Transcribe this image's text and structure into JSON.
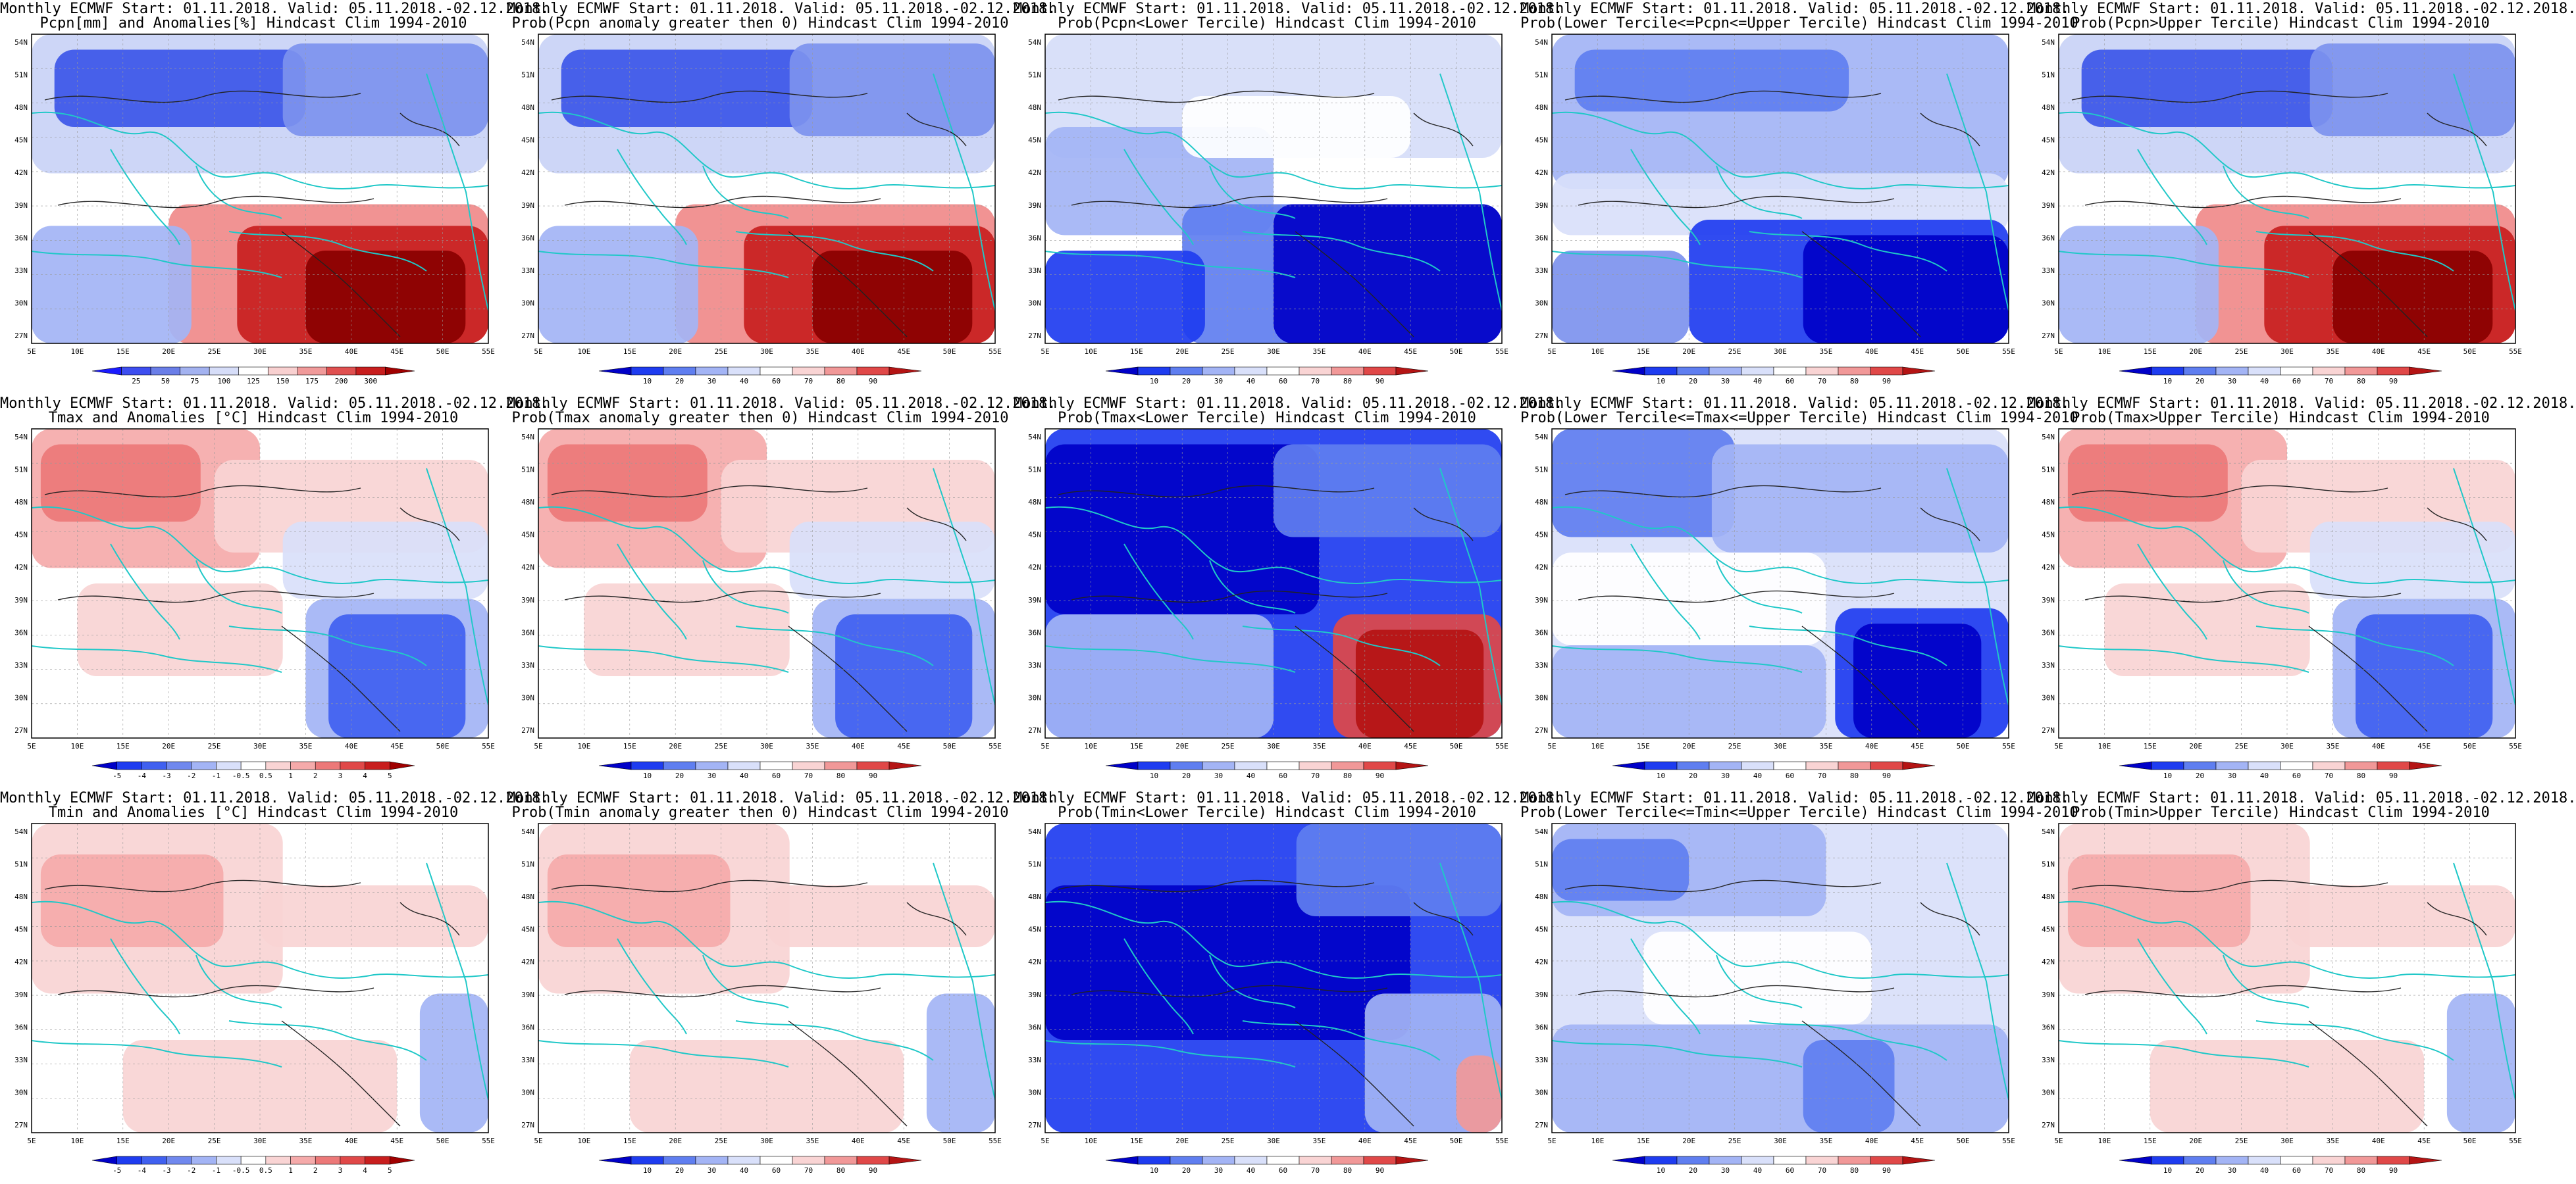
{
  "panels": [
    {
      "row": 0,
      "col": 0,
      "title1": "Monthly ECMWF Start: 01.11.2018. Valid: 05.11.2018.-02.12.2018.",
      "title2": "Pcpn[mm] and Anomalies[%] Hindcast Clim 1994-2010",
      "scale": "pcpn",
      "pattern": "a"
    },
    {
      "row": 0,
      "col": 1,
      "title1": "Monthly ECMWF Start: 01.11.2018. Valid: 05.11.2018.-02.12.2018.",
      "title2": "Prob(Pcpn anomaly greater then 0) Hindcast Clim 1994-2010",
      "scale": "prob",
      "pattern": "a"
    },
    {
      "row": 0,
      "col": 2,
      "title1": "Monthly ECMWF Start: 01.11.2018. Valid: 05.11.2018.-02.12.2018.",
      "title2": "Prob(Pcpn<Lower Tercile) Hindcast Clim 1994-2010",
      "scale": "prob",
      "pattern": "b"
    },
    {
      "row": 0,
      "col": 3,
      "title1": "Monthly ECMWF Start: 01.11.2018. Valid: 05.11.2018.-02.12.2018.",
      "title2": "Prob(Lower Tercile<=Pcpn<=Upper Tercile) Hindcast Clim 1994-2010",
      "scale": "prob",
      "pattern": "c"
    },
    {
      "row": 0,
      "col": 4,
      "title1": "Monthly ECMWF Start: 01.11.2018. Valid: 05.11.2018.-02.12.2018.",
      "title2": "Prob(Pcpn>Upper Tercile) Hindcast Clim 1994-2010",
      "scale": "prob",
      "pattern": "a"
    },
    {
      "row": 1,
      "col": 0,
      "title1": "Monthly ECMWF Start: 01.11.2018. Valid: 05.11.2018.-02.12.2018.",
      "title2": "Tmax and Anomalies [°C] Hindcast Clim 1994-2010",
      "scale": "temp",
      "pattern": "d"
    },
    {
      "row": 1,
      "col": 1,
      "title1": "Monthly ECMWF Start: 01.11.2018. Valid: 05.11.2018.-02.12.2018.",
      "title2": "Prob(Tmax anomaly greater then 0) Hindcast Clim 1994-2010",
      "scale": "prob",
      "pattern": "d"
    },
    {
      "row": 1,
      "col": 2,
      "title1": "Monthly ECMWF Start: 01.11.2018. Valid: 05.11.2018.-02.12.2018.",
      "title2": "Prob(Tmax<Lower Tercile) Hindcast Clim 1994-2010",
      "scale": "prob",
      "pattern": "e"
    },
    {
      "row": 1,
      "col": 3,
      "title1": "Monthly ECMWF Start: 01.11.2018. Valid: 05.11.2018.-02.12.2018.",
      "title2": "Prob(Lower Tercile<=Tmax<=Upper Tercile) Hindcast Clim 1994-2010",
      "scale": "prob",
      "pattern": "f"
    },
    {
      "row": 1,
      "col": 4,
      "title1": "Monthly ECMWF Start: 01.11.2018. Valid: 05.11.2018.-02.12.2018.",
      "title2": "Prob(Tmax>Upper Tercile) Hindcast Clim 1994-2010",
      "scale": "prob",
      "pattern": "d"
    },
    {
      "row": 2,
      "col": 0,
      "title1": "Monthly ECMWF Start: 01.11.2018. Valid: 05.11.2018.-02.12.2018.",
      "title2": "Tmin and Anomalies [°C] Hindcast Clim 1994-2010",
      "scale": "temp",
      "pattern": "g"
    },
    {
      "row": 2,
      "col": 1,
      "title1": "Monthly ECMWF Start: 01.11.2018. Valid: 05.11.2018.-02.12.2018.",
      "title2": "Prob(Tmin anomaly greater then 0) Hindcast Clim 1994-2010",
      "scale": "prob",
      "pattern": "g"
    },
    {
      "row": 2,
      "col": 2,
      "title1": "Monthly ECMWF Start: 01.11.2018. Valid: 05.11.2018.-02.12.2018.",
      "title2": "Prob(Tmin<Lower Tercile) Hindcast Clim 1994-2010",
      "scale": "prob",
      "pattern": "h"
    },
    {
      "row": 2,
      "col": 3,
      "title1": "Monthly ECMWF Start: 01.11.2018. Valid: 05.11.2018.-02.12.2018.",
      "title2": "Prob(Lower Tercile<=Tmin<=Upper Tercile) Hindcast Clim 1994-2010",
      "scale": "prob",
      "pattern": "i"
    },
    {
      "row": 2,
      "col": 4,
      "title1": "Monthly ECMWF Start: 01.11.2018. Valid: 05.11.2018.-02.12.2018.",
      "title2": "Prob(Tmin>Upper Tercile) Hindcast Clim 1994-2010",
      "scale": "prob",
      "pattern": "g"
    }
  ],
  "lat_labels": [
    "54N",
    "51N",
    "48N",
    "45N",
    "42N",
    "39N",
    "36N",
    "33N",
    "30N",
    "27N"
  ],
  "lon_labels": [
    "5E",
    "10E",
    "15E",
    "20E",
    "25E",
    "30E",
    "35E",
    "40E",
    "45E",
    "50E",
    "55E"
  ],
  "scales": {
    "pcpn": {
      "labels": [
        "25",
        "50",
        "75",
        "100",
        "125",
        "150",
        "175",
        "200",
        "300"
      ],
      "colors": [
        "#1a1aff",
        "#3d4ef0",
        "#6a7ee8",
        "#a3b2f0",
        "#d6ddf8",
        "#ffffff",
        "#f8d0d0",
        "#f09a9a",
        "#e05050",
        "#c81e1e",
        "#a00000"
      ]
    },
    "prob": {
      "labels": [
        "10",
        "20",
        "30",
        "40",
        "60",
        "70",
        "80",
        "90"
      ],
      "colors": [
        "#0000c8",
        "#1e3cf0",
        "#5f7ef0",
        "#a3b4f5",
        "#d9e0fa",
        "#ffffff",
        "#f9d4d4",
        "#f19898",
        "#e04848",
        "#b41414"
      ]
    },
    "temp": {
      "labels": [
        "-5",
        "-4",
        "-3",
        "-2",
        "-1",
        "-0.5",
        "0.5",
        "1",
        "2",
        "3",
        "4",
        "5"
      ],
      "colors": [
        "#0000c8",
        "#1e3cf0",
        "#4060f0",
        "#7088ee",
        "#a3b4f5",
        "#d9e0fa",
        "#ffffff",
        "#f9d4d4",
        "#f5aaaa",
        "#ec7878",
        "#e04848",
        "#c81e1e",
        "#a00000"
      ]
    }
  },
  "patterns": {
    "a": [
      [
        "#c9d2f6",
        0,
        0,
        1,
        0.45
      ],
      [
        "#3c56e8",
        0.05,
        0.05,
        0.55,
        0.25
      ],
      [
        "#7d92ee",
        0.55,
        0.03,
        0.45,
        0.3
      ],
      [
        "#ffffff",
        0,
        0.45,
        1,
        0.2
      ],
      [
        "#f08a8a",
        0.3,
        0.55,
        0.7,
        0.45
      ],
      [
        "#c81e1e",
        0.45,
        0.62,
        0.55,
        0.38
      ],
      [
        "#8a0000",
        0.6,
        0.7,
        0.35,
        0.3
      ],
      [
        "#a3b4f5",
        0,
        0.62,
        0.35,
        0.38
      ]
    ],
    "b": [
      [
        "#d6ddf8",
        0,
        0,
        1,
        0.4
      ],
      [
        "#a3b4f5",
        0,
        0.3,
        0.5,
        0.35
      ],
      [
        "#ffffff",
        0.3,
        0.2,
        0.5,
        0.2
      ],
      [
        "#5f7ef0",
        0.3,
        0.55,
        0.7,
        0.45
      ],
      [
        "#0000c8",
        0.5,
        0.55,
        0.5,
        0.45
      ],
      [
        "#1e3cf0",
        0,
        0.7,
        0.35,
        0.3
      ]
    ],
    "c": [
      [
        "#a3b4f5",
        0,
        0,
        1,
        0.5
      ],
      [
        "#5f7ef0",
        0.05,
        0.05,
        0.6,
        0.2
      ],
      [
        "#d9e0fa",
        0,
        0.45,
        1,
        0.2
      ],
      [
        "#1e3cf0",
        0.3,
        0.6,
        0.7,
        0.4
      ],
      [
        "#0000c8",
        0.55,
        0.65,
        0.45,
        0.35
      ],
      [
        "#7d92ee",
        0,
        0.7,
        0.3,
        0.3
      ]
    ],
    "d": [
      [
        "#ffffff",
        0,
        0,
        1,
        1
      ],
      [
        "#f5aaaa",
        0,
        0,
        0.5,
        0.45
      ],
      [
        "#ec7878",
        0.02,
        0.05,
        0.35,
        0.25
      ],
      [
        "#f9d4d4",
        0.4,
        0.1,
        0.6,
        0.3
      ],
      [
        "#d9e0fa",
        0.55,
        0.3,
        0.45,
        0.25
      ],
      [
        "#a3b4f5",
        0.6,
        0.55,
        0.4,
        0.45
      ],
      [
        "#4060f0",
        0.65,
        0.6,
        0.3,
        0.4
      ],
      [
        "#f9d4d4",
        0.1,
        0.5,
        0.45,
        0.3
      ]
    ],
    "e": [
      [
        "#1e3cf0",
        0,
        0,
        1,
        1
      ],
      [
        "#0000c8",
        0,
        0.05,
        0.6,
        0.55
      ],
      [
        "#5f7ef0",
        0.5,
        0.05,
        0.5,
        0.3
      ],
      [
        "#a3b4f5",
        0,
        0.6,
        0.5,
        0.4
      ],
      [
        "#e04848",
        0.63,
        0.6,
        0.37,
        0.4
      ],
      [
        "#b41414",
        0.68,
        0.65,
        0.28,
        0.35
      ]
    ],
    "f": [
      [
        "#d9e0fa",
        0,
        0,
        1,
        1
      ],
      [
        "#5f7ef0",
        0,
        0,
        0.4,
        0.35
      ],
      [
        "#a3b4f5",
        0.35,
        0.05,
        0.65,
        0.35
      ],
      [
        "#ffffff",
        0,
        0.4,
        0.6,
        0.3
      ],
      [
        "#a3b4f5",
        0,
        0.7,
        0.6,
        0.3
      ],
      [
        "#1e3cf0",
        0.62,
        0.58,
        0.38,
        0.42
      ],
      [
        "#0000c8",
        0.66,
        0.63,
        0.28,
        0.37
      ]
    ],
    "g": [
      [
        "#ffffff",
        0,
        0,
        1,
        1
      ],
      [
        "#f9d4d4",
        0,
        0,
        0.55,
        0.55
      ],
      [
        "#f5aaaa",
        0.02,
        0.1,
        0.4,
        0.3
      ],
      [
        "#f9d4d4",
        0.5,
        0.2,
        0.5,
        0.2
      ],
      [
        "#ffffff",
        0,
        0.55,
        1,
        0.2
      ],
      [
        "#f9d4d4",
        0.2,
        0.7,
        0.6,
        0.3
      ],
      [
        "#a3b4f5",
        0.85,
        0.55,
        0.15,
        0.45
      ]
    ],
    "h": [
      [
        "#1e3cf0",
        0,
        0,
        1,
        1
      ],
      [
        "#0000c8",
        0,
        0.2,
        0.8,
        0.5
      ],
      [
        "#5f7ef0",
        0.55,
        0,
        0.45,
        0.3
      ],
      [
        "#a3b4f5",
        0.7,
        0.55,
        0.3,
        0.45
      ],
      [
        "#f19898",
        0.9,
        0.75,
        0.1,
        0.25
      ]
    ],
    "i": [
      [
        "#d9e0fa",
        0,
        0,
        1,
        1
      ],
      [
        "#a3b4f5",
        0,
        0,
        0.6,
        0.3
      ],
      [
        "#5f7ef0",
        0,
        0.05,
        0.3,
        0.2
      ],
      [
        "#ffffff",
        0.2,
        0.35,
        0.5,
        0.3
      ],
      [
        "#a3b4f5",
        0,
        0.65,
        1,
        0.35
      ],
      [
        "#5f7ef0",
        0.55,
        0.7,
        0.2,
        0.3
      ]
    ]
  }
}
